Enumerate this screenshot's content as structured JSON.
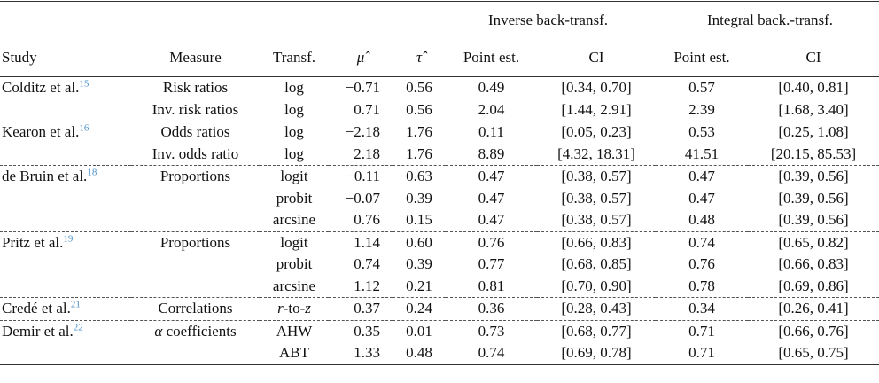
{
  "header": {
    "group_inverse": "Inverse back-transf.",
    "group_integral": "Integral back.-transf.",
    "study": "Study",
    "measure": "Measure",
    "transf": "Transf.",
    "mu_hat": "μ̂",
    "tau_hat": "τ̂",
    "point_est_1": "Point est.",
    "ci_1": "CI",
    "point_est_2": "Point est.",
    "ci_2": "CI"
  },
  "rows": [
    {
      "study": "Colditz et al.",
      "ref": "15",
      "measure": "Risk ratios",
      "transf": "log",
      "mu": "−0.71",
      "tau": "0.56",
      "inv_pe": "0.49",
      "inv_ci": "[0.34, 0.70]",
      "int_pe": "0.57",
      "int_ci": "[0.40, 0.81]"
    },
    {
      "study": "",
      "ref": "",
      "measure": "Inv. risk ratios",
      "transf": "log",
      "mu": "0.71",
      "tau": "0.56",
      "inv_pe": "2.04",
      "inv_ci": "[1.44, 2.91]",
      "int_pe": "2.39",
      "int_ci": "[1.68, 3.40]"
    },
    {
      "study": "Kearon et al.",
      "ref": "16",
      "measure": "Odds ratios",
      "transf": "log",
      "mu": "−2.18",
      "tau": "1.76",
      "inv_pe": "0.11",
      "inv_ci": "[0.05, 0.23]",
      "int_pe": "0.53",
      "int_ci": "[0.25, 1.08]"
    },
    {
      "study": "",
      "ref": "",
      "measure": "Inv. odds ratio",
      "transf": "log",
      "mu": "2.18",
      "tau": "1.76",
      "inv_pe": "8.89",
      "inv_ci": "[4.32, 18.31]",
      "int_pe": "41.51",
      "int_ci": "[20.15, 85.53]"
    },
    {
      "study": "de Bruin et al.",
      "ref": "18",
      "measure": "Proportions",
      "transf": "logit",
      "mu": "−0.11",
      "tau": "0.63",
      "inv_pe": "0.47",
      "inv_ci": "[0.38, 0.57]",
      "int_pe": "0.47",
      "int_ci": "[0.39, 0.56]"
    },
    {
      "study": "",
      "ref": "",
      "measure": "",
      "transf": "probit",
      "mu": "−0.07",
      "tau": "0.39",
      "inv_pe": "0.47",
      "inv_ci": "[0.38, 0.57]",
      "int_pe": "0.47",
      "int_ci": "[0.39, 0.56]"
    },
    {
      "study": "",
      "ref": "",
      "measure": "",
      "transf": "arcsine",
      "mu": "0.76",
      "tau": "0.15",
      "inv_pe": "0.47",
      "inv_ci": "[0.38, 0.57]",
      "int_pe": "0.48",
      "int_ci": "[0.39, 0.56]"
    },
    {
      "study": "Pritz et al.",
      "ref": "19",
      "measure": "Proportions",
      "transf": "logit",
      "mu": "1.14",
      "tau": "0.60",
      "inv_pe": "0.76",
      "inv_ci": "[0.66, 0.83]",
      "int_pe": "0.74",
      "int_ci": "[0.65, 0.82]"
    },
    {
      "study": "",
      "ref": "",
      "measure": "",
      "transf": "probit",
      "mu": "0.74",
      "tau": "0.39",
      "inv_pe": "0.77",
      "inv_ci": "[0.68, 0.85]",
      "int_pe": "0.76",
      "int_ci": "[0.66, 0.83]"
    },
    {
      "study": "",
      "ref": "",
      "measure": "",
      "transf": "arcsine",
      "mu": "1.12",
      "tau": "0.21",
      "inv_pe": "0.81",
      "inv_ci": "[0.70, 0.90]",
      "int_pe": "0.78",
      "int_ci": "[0.69, 0.86]"
    },
    {
      "study": "Credé et al.",
      "ref": "21",
      "measure": "Correlations",
      "transf_italic": "r",
      "transf": "-to-",
      "transf_italic2": "z",
      "mu": "0.37",
      "tau": "0.24",
      "inv_pe": "0.36",
      "inv_ci": "[0.28, 0.43]",
      "int_pe": "0.34",
      "int_ci": "[0.26, 0.41]"
    },
    {
      "study": "Demir et al.",
      "ref": "22",
      "measure_italic": "α",
      "measure": " coefficients",
      "transf": "AHW",
      "mu": "0.35",
      "tau": "0.01",
      "inv_pe": "0.73",
      "inv_ci": "[0.68, 0.77]",
      "int_pe": "0.71",
      "int_ci": "[0.66, 0.76]"
    },
    {
      "study": "",
      "ref": "",
      "measure": "",
      "transf": "ABT",
      "mu": "1.33",
      "tau": "0.48",
      "inv_pe": "0.74",
      "inv_ci": "[0.69, 0.78]",
      "int_pe": "0.71",
      "int_ci": "[0.65, 0.75]"
    }
  ]
}
